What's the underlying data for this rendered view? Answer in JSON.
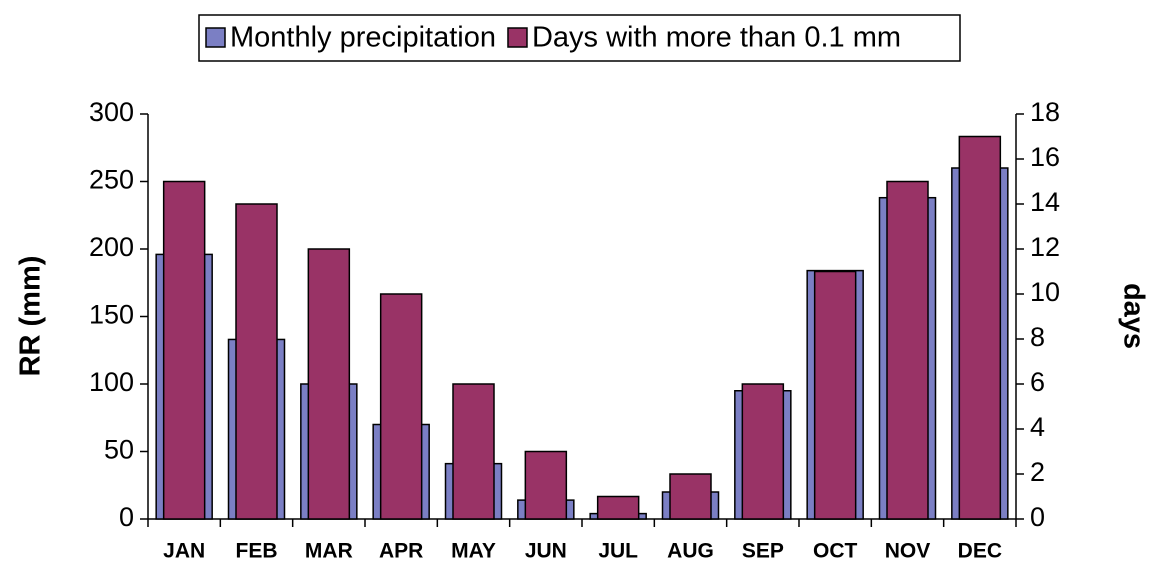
{
  "chart_data": {
    "type": "bar",
    "categories": [
      "JAN",
      "FEB",
      "MAR",
      "APR",
      "MAY",
      "JUN",
      "JUL",
      "AUG",
      "SEP",
      "OCT",
      "NOV",
      "DEC"
    ],
    "series": [
      {
        "name": "Monthly precipitation",
        "color": "#7b7fc4",
        "values": [
          196,
          133,
          100,
          70,
          41,
          14,
          4,
          20,
          95,
          184,
          238,
          260
        ]
      },
      {
        "name": "Days with more than 0.1 mm",
        "color": "#993366",
        "axis": "y2",
        "values": [
          15,
          14,
          12,
          10,
          6,
          3,
          1,
          2,
          6,
          11,
          15,
          17
        ]
      }
    ],
    "y_label": "RR  (mm)",
    "y2_label": "days",
    "ylim": [
      0,
      300
    ],
    "yticks": [
      0,
      50,
      100,
      150,
      200,
      250,
      300
    ],
    "y2lim": [
      0,
      18
    ],
    "y2ticks": [
      0,
      2,
      4,
      6,
      8,
      10,
      12,
      14,
      16,
      18
    ],
    "legend": "top"
  }
}
